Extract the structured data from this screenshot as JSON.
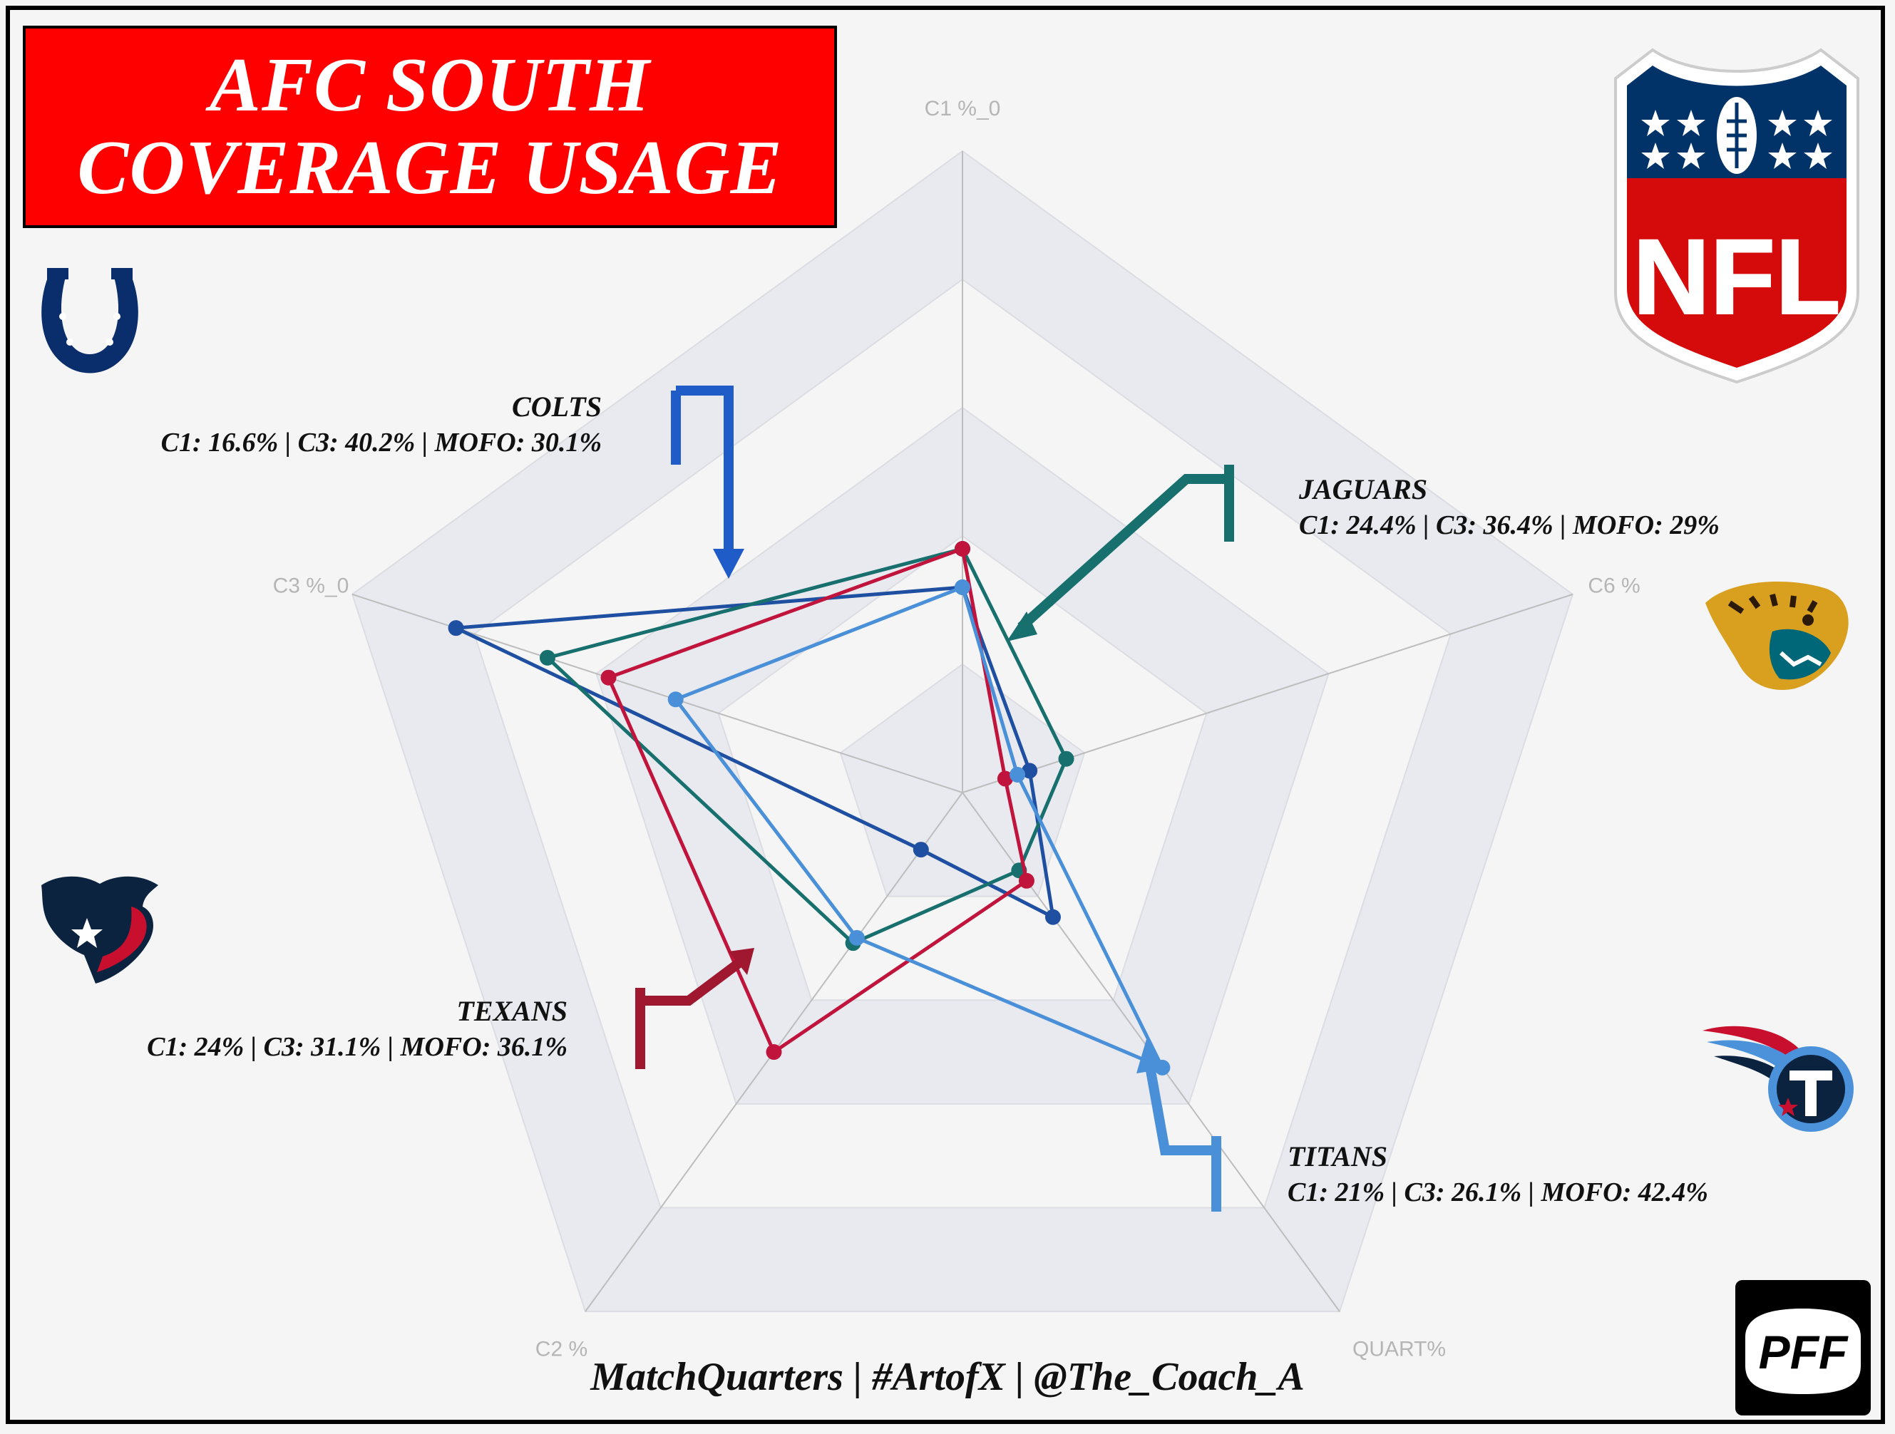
{
  "header": {
    "title_line1": "AFC SOUTH",
    "title_line2": "COVERAGE USAGE",
    "title_bg": "#ff0000"
  },
  "teams": {
    "colts": {
      "name": "COLTS",
      "stats": "C1: 16.6% | C3: 40.2% | MOFO: 30.1%",
      "color": "#1f4fa0",
      "icon": "horseshoe-icon"
    },
    "jaguars": {
      "name": "JAGUARS",
      "stats": "C1: 24.4% | C3: 36.4% | MOFO: 29%",
      "color": "#17706e",
      "icon": "jaguar-head-icon"
    },
    "texans": {
      "name": "TEXANS",
      "stats": "C1: 24% | C3: 31.1% | MOFO: 36.1%",
      "color": "#c0143c",
      "icon": "bull-head-icon"
    },
    "titans": {
      "name": "TITANS",
      "stats": "C1: 21% | C3: 26.1% | MOFO: 42.4%",
      "color": "#4a90d9",
      "icon": "titans-flame-t-icon"
    }
  },
  "logos": {
    "nfl": {
      "icon": "nfl-shield-icon",
      "text": "NFL"
    },
    "pff": {
      "icon": "pff-logo-icon",
      "text": "PFF"
    }
  },
  "footer": "MatchQuarters | #ArtofX | @The_Coach_A",
  "chart_data": {
    "type": "radar",
    "axes": [
      "C1 %_0",
      "C6 %",
      "QUART%",
      "C2 %",
      "C3 %_0"
    ],
    "rmax": 1.0,
    "gridlines": 5,
    "grid_fill": "#e8eaf0",
    "series": [
      {
        "name": "Colts",
        "color": "#1f4fa0",
        "values": [
          0.32,
          0.11,
          0.24,
          0.11,
          0.83
        ]
      },
      {
        "name": "Jaguars",
        "color": "#17706e",
        "values": [
          0.38,
          0.17,
          0.15,
          0.29,
          0.68
        ]
      },
      {
        "name": "Texans",
        "color": "#c0143c",
        "values": [
          0.38,
          0.07,
          0.17,
          0.5,
          0.58
        ]
      },
      {
        "name": "Titans",
        "color": "#4a90d9",
        "values": [
          0.32,
          0.09,
          0.53,
          0.28,
          0.47
        ]
      }
    ]
  }
}
